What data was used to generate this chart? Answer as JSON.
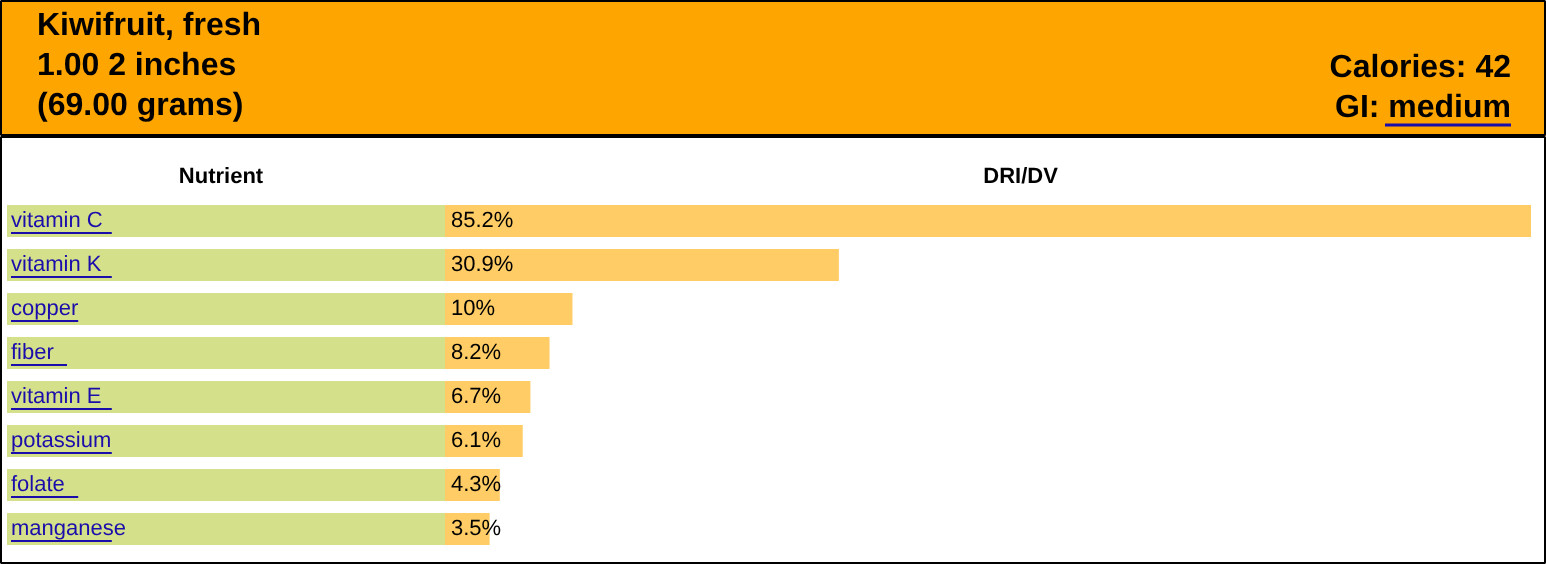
{
  "chart_data": {
    "type": "bar",
    "orientation": "horizontal",
    "title": "Kiwifruit, fresh\n1.00 2 inches\n(69.00 grams)",
    "annotations": [
      "Calories: 42",
      "GI: medium"
    ],
    "ylabel": "Nutrient",
    "xlabel": "DRI/DV",
    "categories": [
      "vitamin C",
      "vitamin K",
      "copper",
      "fiber",
      "vitamin E",
      "potassium",
      "folate",
      "manganese"
    ],
    "values": [
      85.2,
      30.9,
      10,
      8.2,
      6.7,
      6.1,
      4.3,
      3.5
    ],
    "value_labels": [
      "85.2%",
      "30.9%",
      "10%",
      "8.2%",
      "6.7%",
      "6.1%",
      "4.3%",
      "3.5%"
    ],
    "color": "#ffcc66",
    "grid": false
  }
}
